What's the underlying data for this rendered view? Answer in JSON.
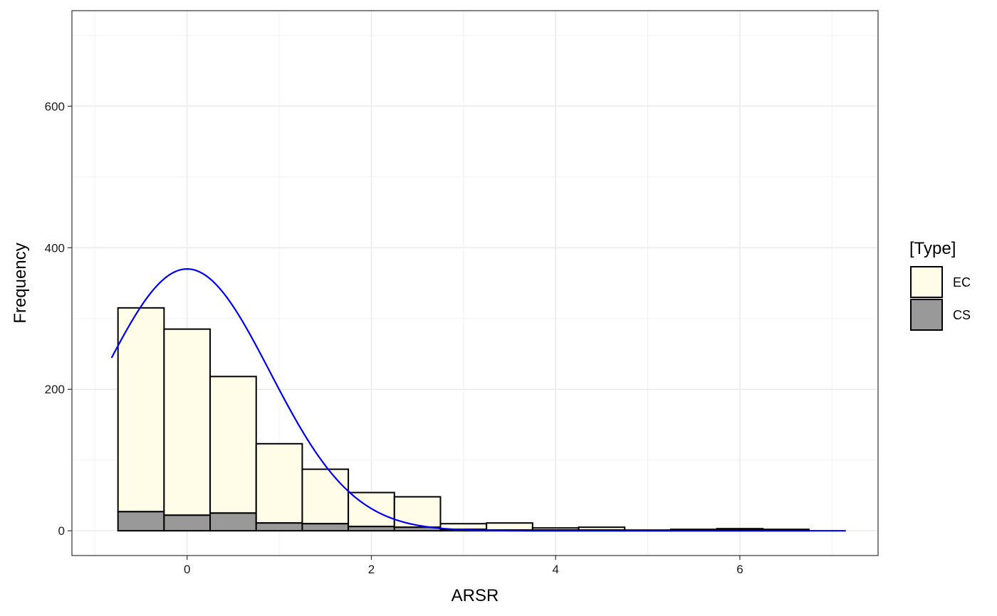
{
  "chart_data": {
    "type": "bar",
    "subtype": "stacked-histogram-with-normal-curve",
    "xlabel": "ARSR",
    "ylabel": "Frequency",
    "xlim": [
      -1.25,
      7.5
    ],
    "ylim": [
      -35,
      735
    ],
    "x_ticks": [
      0,
      2,
      4,
      6
    ],
    "y_ticks": [
      0,
      200,
      400,
      600
    ],
    "grid": true,
    "legend": {
      "title": "[Type]",
      "position": "right"
    },
    "bin_width": 0.5,
    "bin_starts": [
      -0.75,
      -0.25,
      0.25,
      0.75,
      1.25,
      1.75,
      2.25,
      2.75,
      3.25,
      3.75,
      4.25,
      4.75,
      5.25,
      5.75,
      6.25
    ],
    "series": [
      {
        "name": "CS",
        "color": "#999999",
        "values": [
          27,
          22,
          25,
          11,
          10,
          6,
          5,
          2,
          1,
          1,
          1,
          0,
          0,
          1,
          0
        ]
      },
      {
        "name": "EC",
        "color": "#fffde7",
        "values": [
          288,
          263,
          193,
          112,
          77,
          48,
          43,
          8,
          10,
          3,
          4,
          1,
          2,
          2,
          2
        ]
      }
    ],
    "curve": {
      "name": "normal-fit",
      "color": "#0000ee",
      "x_range": [
        -0.82,
        7.15
      ],
      "peak_x": 0,
      "peak_y": 370,
      "sd": 0.9
    }
  }
}
